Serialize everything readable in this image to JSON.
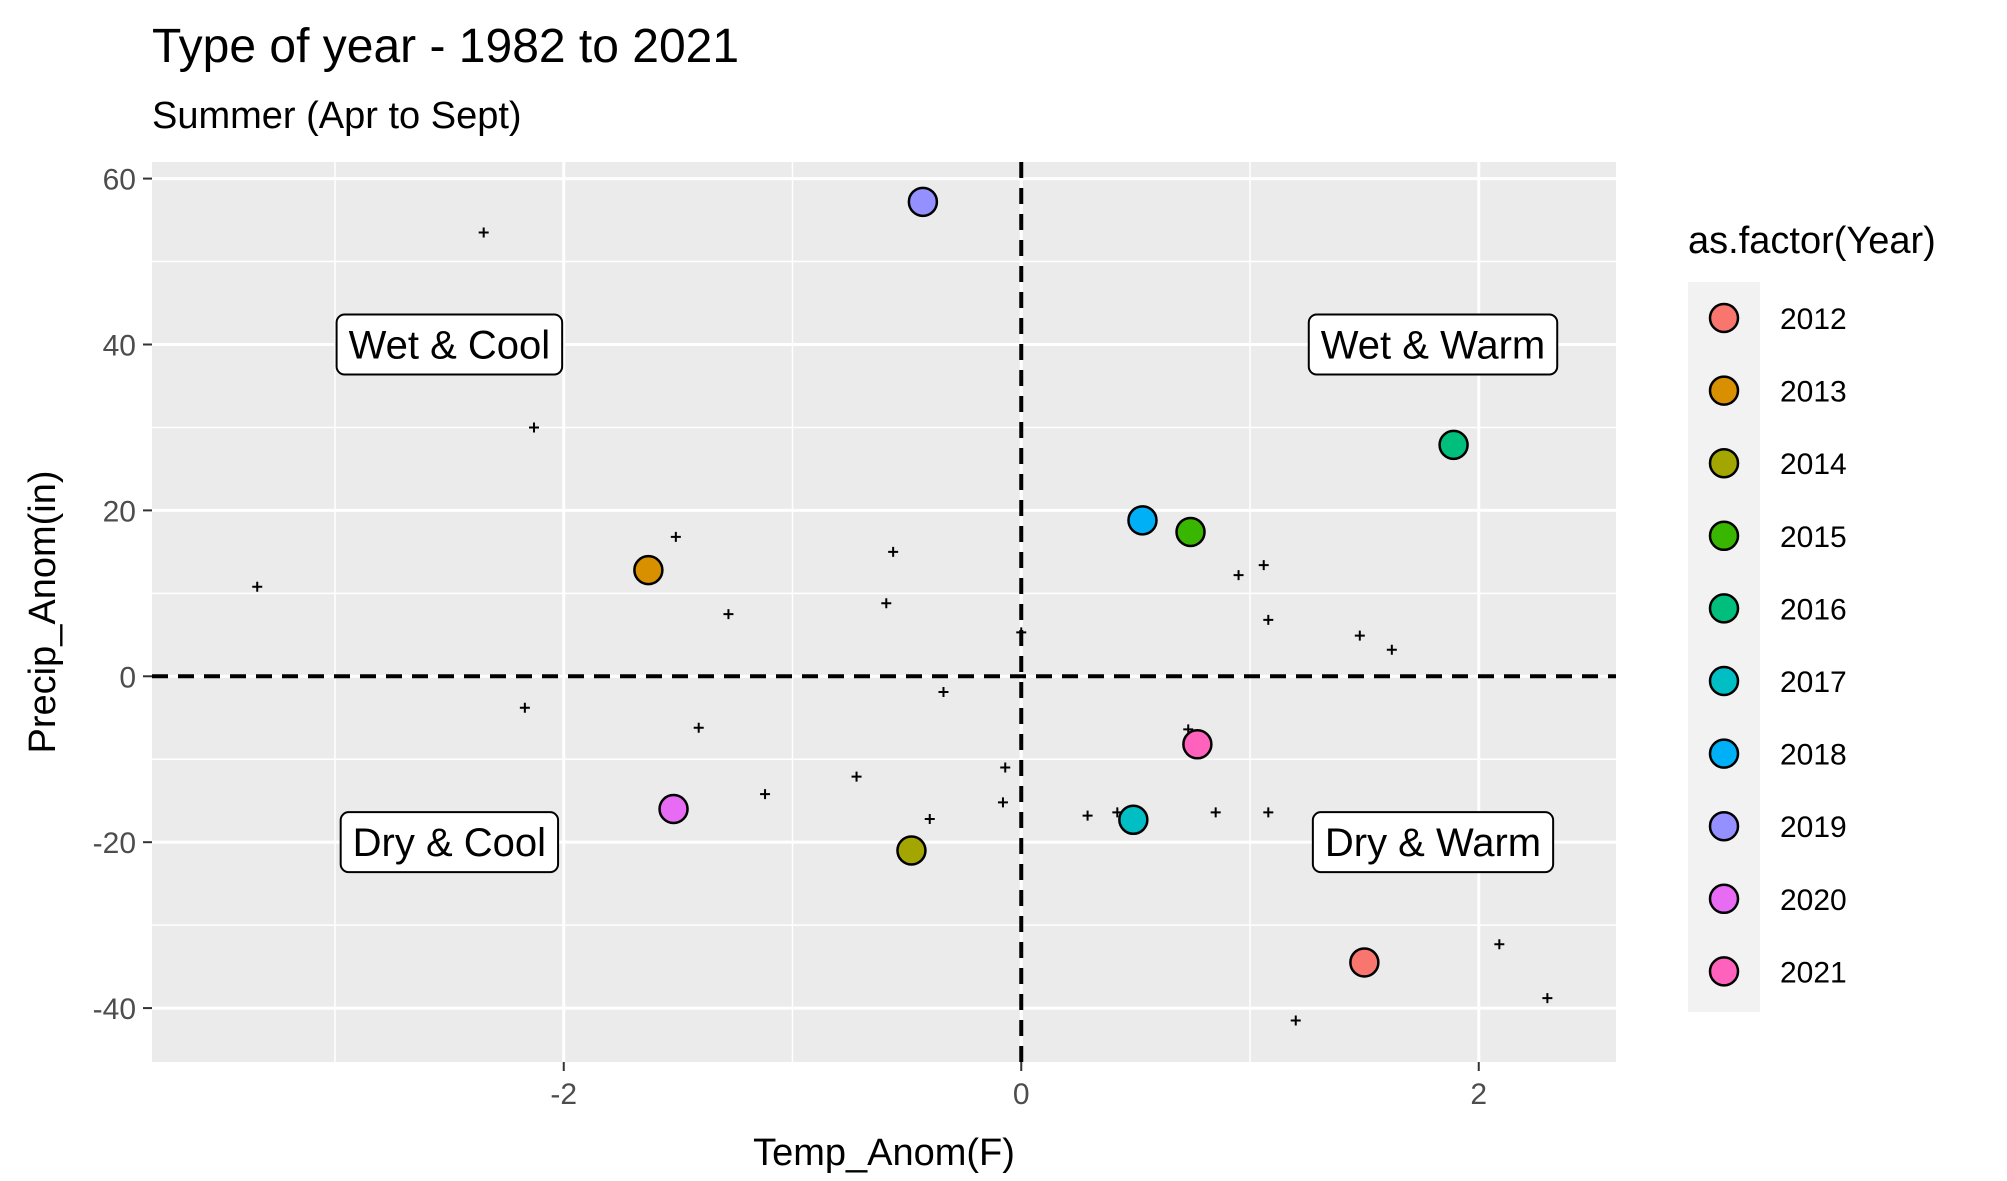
{
  "chart_data": {
    "type": "scatter",
    "title": "Type of year - 1982 to 2021",
    "subtitle": "Summer (Apr to Sept)",
    "xlabel": "Temp_Anom(F)",
    "ylabel": "Precip_Anom(in)",
    "xlim": [
      -3.8,
      2.6
    ],
    "ylim": [
      -46.5,
      62
    ],
    "x_ticks": [
      -2,
      0,
      2
    ],
    "y_ticks": [
      -40,
      -20,
      0,
      20,
      40,
      60
    ],
    "x_tick_labels": [
      "-2",
      "0",
      "2"
    ],
    "y_tick_labels": [
      "-40",
      "-20",
      "0",
      "20",
      "40",
      "60"
    ],
    "grid": true,
    "reference_lines": {
      "x": 0,
      "y": 0,
      "style": "dashed"
    },
    "background_points": [
      {
        "x": -2.35,
        "y": 53.5
      },
      {
        "x": -2.13,
        "y": 30.0
      },
      {
        "x": -3.34,
        "y": 10.8
      },
      {
        "x": -1.51,
        "y": 16.8
      },
      {
        "x": -1.28,
        "y": 7.5
      },
      {
        "x": -0.56,
        "y": 15.0
      },
      {
        "x": -0.59,
        "y": 8.8
      },
      {
        "x": 0.0,
        "y": 5.3
      },
      {
        "x": -0.34,
        "y": -1.9
      },
      {
        "x": -2.17,
        "y": -3.8
      },
      {
        "x": -1.41,
        "y": -6.2
      },
      {
        "x": -1.12,
        "y": -14.2
      },
      {
        "x": -0.72,
        "y": -12.1
      },
      {
        "x": -0.4,
        "y": -17.2
      },
      {
        "x": -0.07,
        "y": -11.0
      },
      {
        "x": -0.08,
        "y": -15.2
      },
      {
        "x": 0.29,
        "y": -16.8
      },
      {
        "x": 0.42,
        "y": -16.4
      },
      {
        "x": 0.73,
        "y": -6.4
      },
      {
        "x": 0.85,
        "y": -16.4
      },
      {
        "x": 1.08,
        "y": -16.4
      },
      {
        "x": 0.95,
        "y": 12.2
      },
      {
        "x": 1.06,
        "y": 13.4
      },
      {
        "x": 1.08,
        "y": 6.8
      },
      {
        "x": 1.48,
        "y": 4.9
      },
      {
        "x": 1.62,
        "y": 3.2
      },
      {
        "x": 1.2,
        "y": -41.5
      },
      {
        "x": 2.09,
        "y": -32.3
      },
      {
        "x": 2.3,
        "y": -38.8
      }
    ],
    "series": [
      {
        "name": "2012",
        "x": 1.5,
        "y": -34.5,
        "color": "#F8766D"
      },
      {
        "name": "2013",
        "x": -1.63,
        "y": 12.8,
        "color": "#D89000"
      },
      {
        "name": "2014",
        "x": -0.48,
        "y": -21.0,
        "color": "#A3A500"
      },
      {
        "name": "2015",
        "x": 0.74,
        "y": 17.4,
        "color": "#39B600"
      },
      {
        "name": "2016",
        "x": 1.89,
        "y": 27.9,
        "color": "#00BF7D"
      },
      {
        "name": "2017",
        "x": 0.49,
        "y": -17.3,
        "color": "#00BFC4"
      },
      {
        "name": "2018",
        "x": 0.53,
        "y": 18.8,
        "color": "#00B0F6"
      },
      {
        "name": "2019",
        "x": -0.43,
        "y": 57.2,
        "color": "#9590FF"
      },
      {
        "name": "2020",
        "x": -1.52,
        "y": -16.0,
        "color": "#E76BF3"
      },
      {
        "name": "2021",
        "x": 0.77,
        "y": -8.2,
        "color": "#FF62BC"
      }
    ],
    "annotations": [
      {
        "text": "Wet & Cool",
        "x": -2.5,
        "y": 40
      },
      {
        "text": "Wet & Warm",
        "x": 1.8,
        "y": 40
      },
      {
        "text": "Dry & Cool",
        "x": -2.5,
        "y": -20
      },
      {
        "text": "Dry & Warm",
        "x": 1.8,
        "y": -20
      }
    ],
    "legend": {
      "title": "as.factor(Year)",
      "placement": "right"
    }
  }
}
